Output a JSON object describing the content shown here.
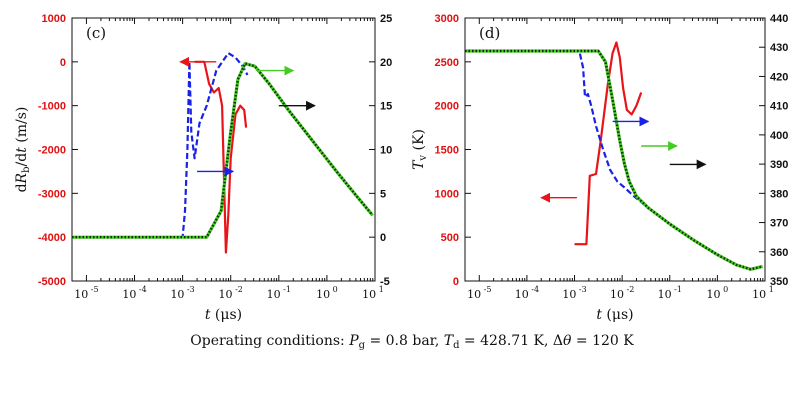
{
  "caption": "Operating conditions: P_g = 0.8 bar, T_d = 428.71 K, Δθ = 120 K",
  "colors": {
    "red": "#e8141a",
    "blue": "#1a22e6",
    "green": "#44cc22",
    "black": "#111111",
    "dotted": "#0f2a0a"
  },
  "chart_data": [
    {
      "type": "line",
      "panel_label": "(c)",
      "xlabel": "t (μs)",
      "ylabel_left": "dR_b/dt (m/s)",
      "ylabel_right": "",
      "x_scale": "log",
      "xlim_log10": [
        -5.3,
        1.0
      ],
      "ylim_left": [
        -5000,
        1000
      ],
      "ylim_right": [
        -5,
        25
      ],
      "x_ticks": [
        {
          "exp": -5,
          "label": "10",
          "sup": "-5"
        },
        {
          "exp": -4,
          "label": "10",
          "sup": "-4"
        },
        {
          "exp": -3,
          "label": "10",
          "sup": "-3"
        },
        {
          "exp": -2,
          "label": "10",
          "sup": "-2"
        },
        {
          "exp": -1,
          "label": "10",
          "sup": "-1"
        },
        {
          "exp": 0,
          "label": "10",
          "sup": "0"
        },
        {
          "exp": 1,
          "label": "10",
          "sup": "1"
        }
      ],
      "y_ticks_left": [
        1000,
        0,
        -1000,
        -2000,
        -3000,
        -4000,
        -5000
      ],
      "y_ticks_right": [
        25,
        20,
        15,
        10,
        5,
        0,
        -5
      ],
      "series": [
        {
          "name": "dRb/dt",
          "axis": "left",
          "color": "red",
          "style": "solid",
          "points": [
            [
              -2.75,
              0
            ],
            [
              -2.55,
              0
            ],
            [
              -2.45,
              -500
            ],
            [
              -2.35,
              -700
            ],
            [
              -2.25,
              -600
            ],
            [
              -2.18,
              -1000
            ],
            [
              -2.1,
              -4350
            ],
            [
              -2.05,
              -3500
            ],
            [
              -2.0,
              -2200
            ],
            [
              -1.9,
              -1200
            ],
            [
              -1.8,
              -1000
            ],
            [
              -1.72,
              -1100
            ],
            [
              -1.68,
              -1500
            ]
          ]
        },
        {
          "name": "Rb",
          "axis": "right",
          "color": "blue",
          "style": "dashed",
          "points": [
            [
              -5.3,
              0
            ],
            [
              -3.0,
              0
            ],
            [
              -2.95,
              3
            ],
            [
              -2.9,
              10
            ],
            [
              -2.86,
              20
            ],
            [
              -2.82,
              12
            ],
            [
              -2.75,
              9
            ],
            [
              -2.65,
              13
            ],
            [
              -2.5,
              15
            ],
            [
              -2.3,
              19
            ],
            [
              -2.05,
              21
            ],
            [
              -1.9,
              20.5
            ],
            [
              -1.75,
              19.5
            ],
            [
              -1.65,
              18.5
            ]
          ]
        },
        {
          "name": "green",
          "axis": "right",
          "color": "green",
          "style": "solid",
          "points": [
            [
              -5.3,
              0
            ],
            [
              -2.5,
              0
            ],
            [
              -2.2,
              3
            ],
            [
              -2.0,
              12
            ],
            [
              -1.85,
              18
            ],
            [
              -1.7,
              19.8
            ],
            [
              -1.5,
              19.5
            ],
            [
              -1.2,
              17.5
            ],
            [
              -0.8,
              14.5
            ],
            [
              -0.3,
              11
            ],
            [
              0.2,
              7.5
            ],
            [
              0.6,
              4.8
            ],
            [
              0.95,
              2.5
            ]
          ]
        },
        {
          "name": "black-dotted",
          "axis": "right",
          "color": "dotted",
          "style": "dotted",
          "points": [
            [
              -5.3,
              0
            ],
            [
              -2.5,
              0
            ],
            [
              -2.2,
              3
            ],
            [
              -2.0,
              12
            ],
            [
              -1.85,
              18
            ],
            [
              -1.7,
              19.8
            ],
            [
              -1.5,
              19.5
            ],
            [
              -1.2,
              17.5
            ],
            [
              -0.8,
              14.5
            ],
            [
              -0.3,
              11
            ],
            [
              0.2,
              7.5
            ],
            [
              0.6,
              4.8
            ],
            [
              0.95,
              2.5
            ]
          ]
        }
      ],
      "arrows": [
        {
          "color": "red",
          "dir": "left",
          "at": [
            -2.3,
            0
          ],
          "axis": "left",
          "length_dex": 0.75
        },
        {
          "color": "blue",
          "dir": "right",
          "at": [
            -2.7,
            7.5
          ],
          "axis": "right",
          "length_dex": 0.75
        },
        {
          "color": "green",
          "dir": "right",
          "at": [
            -1.45,
            19.0
          ],
          "axis": "right",
          "length_dex": 0.75
        },
        {
          "color": "black",
          "dir": "right",
          "at": [
            -1.0,
            15.0
          ],
          "axis": "right",
          "length_dex": 0.75
        }
      ]
    },
    {
      "type": "line",
      "panel_label": "(d)",
      "xlabel": "t (μs)",
      "ylabel_left": "T_v (K)",
      "ylabel_right": "",
      "x_scale": "log",
      "xlim_log10": [
        -5.3,
        1.0
      ],
      "ylim_left": [
        0,
        3000
      ],
      "ylim_right": [
        350,
        440
      ],
      "x_ticks": [
        {
          "exp": -5,
          "label": "10",
          "sup": "-5"
        },
        {
          "exp": -4,
          "label": "10",
          "sup": "-4"
        },
        {
          "exp": -3,
          "label": "10",
          "sup": "-3"
        },
        {
          "exp": -2,
          "label": "10",
          "sup": "-2"
        },
        {
          "exp": -1,
          "label": "10",
          "sup": "-1"
        },
        {
          "exp": 0,
          "label": "10",
          "sup": "0"
        },
        {
          "exp": 1,
          "label": "10",
          "sup": "1"
        }
      ],
      "y_ticks_left": [
        3000,
        2500,
        2000,
        1500,
        1000,
        500,
        0
      ],
      "y_ticks_right": [
        440,
        430,
        420,
        410,
        400,
        390,
        380,
        370,
        360,
        350
      ],
      "series": [
        {
          "name": "Tv",
          "axis": "left",
          "color": "red",
          "style": "solid",
          "points": [
            [
              -3.0,
              420
            ],
            [
              -2.75,
              420
            ],
            [
              -2.68,
              1200
            ],
            [
              -2.55,
              1220
            ],
            [
              -2.45,
              1600
            ],
            [
              -2.3,
              2250
            ],
            [
              -2.2,
              2600
            ],
            [
              -2.12,
              2720
            ],
            [
              -2.05,
              2550
            ],
            [
              -1.98,
              2200
            ],
            [
              -1.9,
              1950
            ],
            [
              -1.8,
              1900
            ],
            [
              -1.7,
              2000
            ],
            [
              -1.6,
              2150
            ]
          ]
        },
        {
          "name": "blue",
          "axis": "right",
          "color": "blue",
          "style": "dashed",
          "points": [
            [
              -5.3,
              428.7
            ],
            [
              -2.9,
              428.7
            ],
            [
              -2.82,
              423
            ],
            [
              -2.78,
              413
            ],
            [
              -2.72,
              414
            ],
            [
              -2.65,
              410
            ],
            [
              -2.55,
              403
            ],
            [
              -2.4,
              395
            ],
            [
              -2.25,
              388
            ],
            [
              -2.1,
              384
            ],
            [
              -1.95,
              382
            ],
            [
              -1.75,
              379
            ],
            [
              -1.45,
              375
            ],
            [
              -1.0,
              369.5
            ],
            [
              -0.5,
              364
            ],
            [
              0.0,
              359
            ],
            [
              0.4,
              355.5
            ],
            [
              0.7,
              354
            ],
            [
              0.95,
              355
            ]
          ]
        },
        {
          "name": "green",
          "axis": "right",
          "color": "green",
          "style": "solid",
          "points": [
            [
              -5.3,
              428.7
            ],
            [
              -2.5,
              428.7
            ],
            [
              -2.35,
              425
            ],
            [
              -2.2,
              412
            ],
            [
              -2.05,
              398
            ],
            [
              -1.95,
              390
            ],
            [
              -1.85,
              384
            ],
            [
              -1.7,
              379
            ],
            [
              -1.45,
              375
            ],
            [
              -1.0,
              369.5
            ],
            [
              -0.5,
              364
            ],
            [
              0.0,
              359
            ],
            [
              0.4,
              355.5
            ],
            [
              0.7,
              354
            ],
            [
              0.95,
              355
            ]
          ]
        },
        {
          "name": "black-dotted",
          "axis": "right",
          "color": "dotted",
          "style": "dotted",
          "points": [
            [
              -5.3,
              428.7
            ],
            [
              -2.5,
              428.7
            ],
            [
              -2.35,
              425
            ],
            [
              -2.2,
              412
            ],
            [
              -2.05,
              398
            ],
            [
              -1.95,
              390
            ],
            [
              -1.85,
              384
            ],
            [
              -1.7,
              379
            ],
            [
              -1.45,
              375
            ],
            [
              -1.0,
              369.5
            ],
            [
              -0.5,
              364
            ],
            [
              0.0,
              359
            ],
            [
              0.4,
              355.5
            ],
            [
              0.7,
              354
            ],
            [
              0.95,
              355
            ]
          ]
        }
      ],
      "arrows": [
        {
          "color": "red",
          "dir": "left",
          "at": [
            -2.95,
            950
          ],
          "axis": "left",
          "length_dex": 0.75
        },
        {
          "color": "blue",
          "dir": "right",
          "at": [
            -2.2,
            1820
          ],
          "axis": "left",
          "length_dex": 0.75
        },
        {
          "color": "green",
          "dir": "right",
          "at": [
            -1.6,
            1540
          ],
          "axis": "left",
          "length_dex": 0.75
        },
        {
          "color": "black",
          "dir": "right",
          "at": [
            -1.0,
            1330
          ],
          "axis": "left",
          "length_dex": 0.75
        }
      ]
    }
  ]
}
